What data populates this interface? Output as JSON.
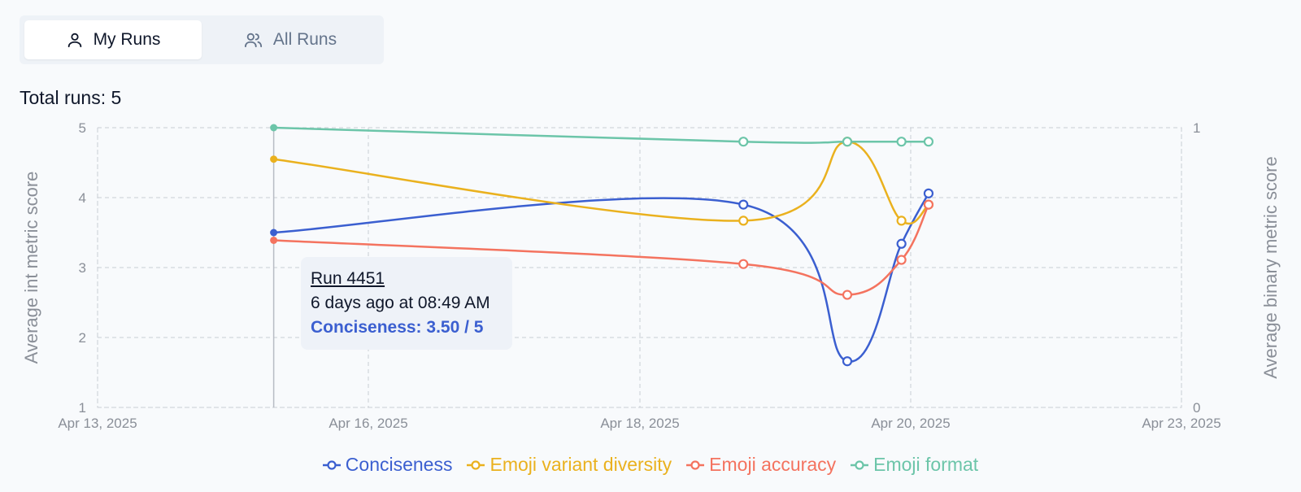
{
  "tabs": [
    {
      "label": "My Runs",
      "icon": "user-icon",
      "active": true
    },
    {
      "label": "All Runs",
      "icon": "users-icon",
      "active": false
    }
  ],
  "total_runs_label": "Total runs: 5",
  "tooltip": {
    "run": "Run 4451",
    "time": "6 days ago at 08:49 AM",
    "value": "Conciseness: 3.50 / 5"
  },
  "colors": {
    "conciseness": "#3b5fd0",
    "emoji_variant_diversity": "#eab11e",
    "emoji_accuracy": "#f4735f",
    "emoji_format": "#6cc5a9",
    "grid": "#c9cdd4",
    "axis_text": "#8a8f98"
  },
  "chart_data": {
    "type": "line",
    "ylabel_left": "Average int metric score",
    "ylabel_right": "Average binary metric score",
    "ylim_left": [
      1,
      5
    ],
    "ylim_right": [
      0,
      1
    ],
    "yticks_left": [
      "1",
      "2",
      "3",
      "4",
      "5"
    ],
    "yticks_right": [
      "0",
      "1"
    ],
    "xlim": [
      "2025-04-13",
      "2025-04-23"
    ],
    "xticks": [
      "Apr 13, 2025",
      "Apr 16, 2025",
      "Apr 18, 2025",
      "Apr 20, 2025",
      "Apr 23, 2025"
    ],
    "grid": true,
    "legend_position": "bottom",
    "x": [
      "2025-04-14T15:00",
      "2025-04-18T23:00",
      "2025-04-19T22:00",
      "2025-04-20T10:00",
      "2025-04-20T16:00"
    ],
    "series": [
      {
        "name": "Conciseness",
        "axis": "left",
        "values": [
          3.5,
          3.9,
          1.66,
          3.34,
          4.06
        ]
      },
      {
        "name": "Emoji variant diversity",
        "axis": "left",
        "values": [
          4.55,
          3.67,
          4.8,
          3.67,
          3.9
        ]
      },
      {
        "name": "Emoji accuracy",
        "axis": "left",
        "values": [
          3.39,
          3.05,
          2.61,
          3.11,
          3.9
        ]
      },
      {
        "name": "Emoji format",
        "axis": "right",
        "values": [
          1.0,
          0.95,
          0.95,
          0.95,
          0.95
        ]
      }
    ],
    "highlighted_x": "2025-04-14T15:00"
  }
}
